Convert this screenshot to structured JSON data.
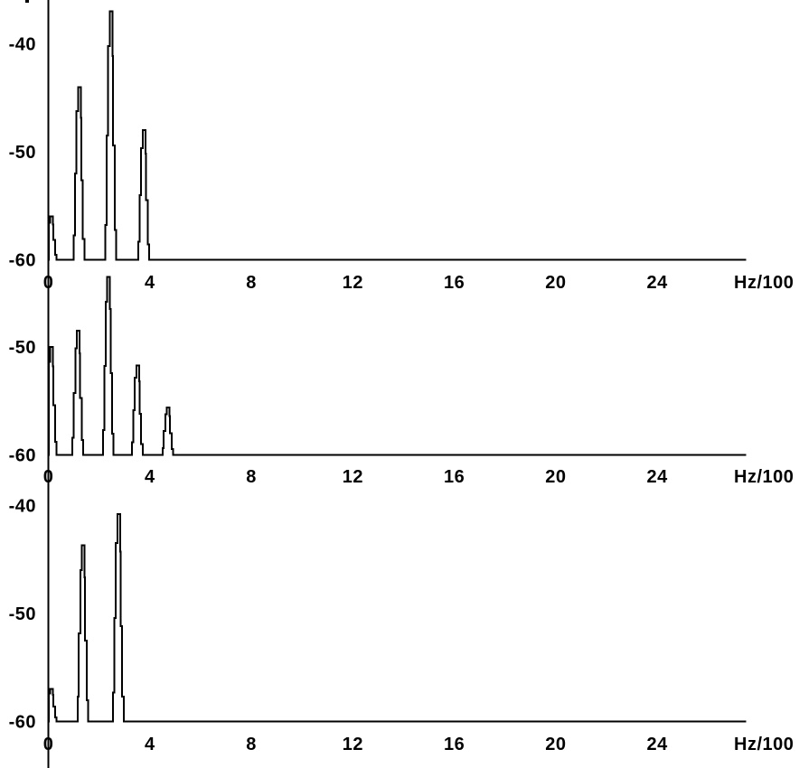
{
  "window": {
    "background_color": "#ffffff",
    "foreground_color": "#000000"
  },
  "chart_data": [
    {
      "type": "line",
      "title": "",
      "xlabel": "Hz/100",
      "x_unit_label": "Hz/100",
      "xlim": [
        0,
        27.5
      ],
      "x_ticks": [
        {
          "value": 0,
          "label": "0"
        },
        {
          "value": 4,
          "label": "4"
        },
        {
          "value": 8,
          "label": "8"
        },
        {
          "value": 12,
          "label": "12"
        },
        {
          "value": 16,
          "label": "16"
        },
        {
          "value": 20,
          "label": "20"
        },
        {
          "value": 24,
          "label": "24"
        }
      ],
      "y_ticks": [
        {
          "value": -40,
          "label": "-40"
        },
        {
          "value": -50,
          "label": "-50"
        },
        {
          "value": -60,
          "label": "-60"
        }
      ],
      "baseline_db": -60,
      "grid": false,
      "legend": false,
      "peaks": [
        {
          "x": 0.15,
          "db": -56
        },
        {
          "x": 1.25,
          "db": -44
        },
        {
          "x": 2.5,
          "db": -37
        },
        {
          "x": 3.8,
          "db": -48
        }
      ]
    },
    {
      "type": "line",
      "title": "",
      "xlabel": "Hz/100",
      "x_unit_label": "Hz/100",
      "xlim": [
        0,
        27.5
      ],
      "x_ticks": [
        {
          "value": 0,
          "label": "0"
        },
        {
          "value": 4,
          "label": "4"
        },
        {
          "value": 8,
          "label": "8"
        },
        {
          "value": 12,
          "label": "12"
        },
        {
          "value": 16,
          "label": "16"
        },
        {
          "value": 20,
          "label": "20"
        },
        {
          "value": 24,
          "label": "24"
        }
      ],
      "y_ticks": [
        {
          "value": -50,
          "label": "-50"
        },
        {
          "value": -60,
          "label": "-60"
        }
      ],
      "baseline_db": -60,
      "grid": false,
      "legend": false,
      "peaks": [
        {
          "x": 0.15,
          "db": -50
        },
        {
          "x": 1.2,
          "db": -48.5
        },
        {
          "x": 2.4,
          "db": -43.5
        },
        {
          "x": 3.55,
          "db": -51.7
        },
        {
          "x": 4.75,
          "db": -55.6
        }
      ]
    },
    {
      "type": "line",
      "title": "",
      "xlabel": "Hz/100",
      "x_unit_label": "Hz/100",
      "xlim": [
        0,
        27.5
      ],
      "x_ticks": [
        {
          "value": 0,
          "label": "0"
        },
        {
          "value": 4,
          "label": "4"
        },
        {
          "value": 8,
          "label": "8"
        },
        {
          "value": 12,
          "label": "12"
        },
        {
          "value": 16,
          "label": "16"
        },
        {
          "value": 20,
          "label": "20"
        },
        {
          "value": 24,
          "label": "24"
        }
      ],
      "y_ticks": [
        {
          "value": -40,
          "label": "-40"
        },
        {
          "value": -50,
          "label": "-50"
        },
        {
          "value": -60,
          "label": "-60"
        }
      ],
      "baseline_db": -60,
      "grid": false,
      "legend": false,
      "peaks": [
        {
          "x": 0.15,
          "db": -57
        },
        {
          "x": 1.4,
          "db": -43.7
        },
        {
          "x": 2.8,
          "db": -40.8
        }
      ]
    }
  ]
}
